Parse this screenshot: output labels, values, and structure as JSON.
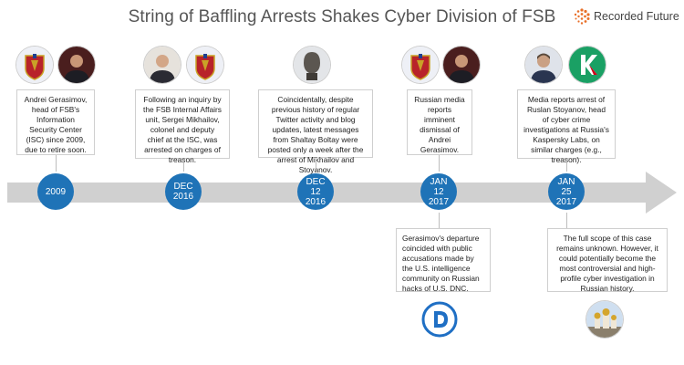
{
  "title": "String of Baffling Arrests Shakes Cyber Division of FSB",
  "brand": {
    "name": "Recorded Future",
    "mark_color": "#e8702a"
  },
  "colors": {
    "node": "#1f73b7",
    "arrow": "#d0d0d0",
    "connector": "#bdbdbd",
    "kaspersky": "#1aa064"
  },
  "icons": [
    "fsb-emblem-icon",
    "portrait-icon",
    "fsb-emblem-icon",
    "portrait-icon",
    "statue-icon",
    "fsb-emblem-icon",
    "portrait-icon",
    "portrait-icon",
    "kaspersky-logo-icon",
    "dnc-logo-icon",
    "kremlin-icon"
  ],
  "events": [
    {
      "date": [
        "2009"
      ],
      "text": "Andrei Gerasimov, head of FSB's Information Security Center (ISC) since 2009, due to retire soon."
    },
    {
      "date": [
        "DEC",
        "2016"
      ],
      "text": "Following an inquiry by the FSB Internal Affairs unit, Sergei Mikhailov, colonel and deputy chief at the ISC, was arrested on charges of treason."
    },
    {
      "date": [
        "DEC",
        "12",
        "2016"
      ],
      "text": "Coincidentally, despite previous history of regular Twitter activity and blog updates, latest messages from Shaltay Boltay were posted only a week after the arrest of Mikhailov and Stoyanov."
    },
    {
      "date": [
        "JAN",
        "12",
        "2017"
      ],
      "text": "Russian media reports imminent dismissal of Andrei Gerasimov.",
      "below_text": "Gerasimov's departure coincided with public accusations made by the U.S. intelligence community on Russian hacks of U.S. DNC."
    },
    {
      "date": [
        "JAN",
        "25",
        "2017"
      ],
      "text": "Media reports arrest of Ruslan Stoyanov, head of cyber crime investigations at Russia's Kaspersky Labs, on similar charges (e.g., treason).",
      "below_text": "The full scope of this case remains unknown. However, it could potentially become the most controversial and high-profile cyber investigation in Russian history."
    }
  ]
}
